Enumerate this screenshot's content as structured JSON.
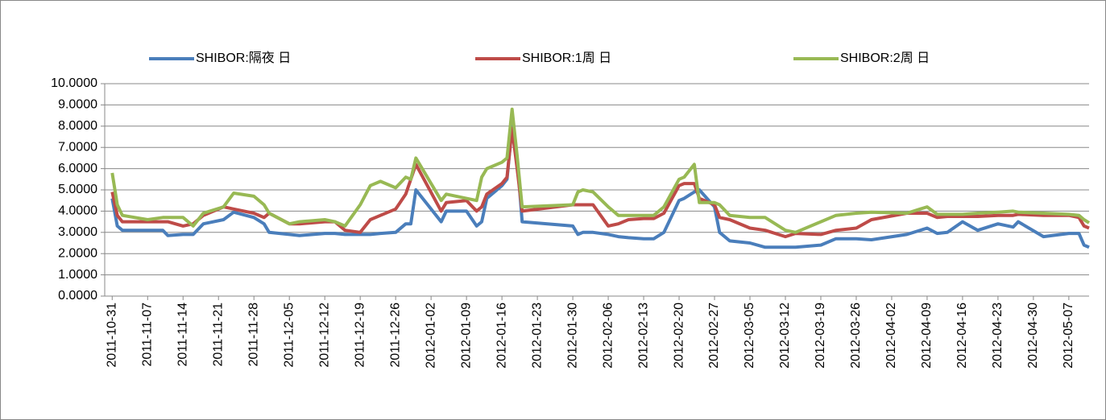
{
  "chart_data": {
    "type": "line",
    "x": [
      "2011-10-31",
      "2011-11-01",
      "2011-11-02",
      "2011-11-07",
      "2011-11-10",
      "2011-11-11",
      "2011-11-14",
      "2011-11-16",
      "2011-11-18",
      "2011-11-22",
      "2011-11-24",
      "2011-11-28",
      "2011-11-30",
      "2011-12-01",
      "2011-12-05",
      "2011-12-07",
      "2011-12-12",
      "2011-12-14",
      "2011-12-16",
      "2011-12-19",
      "2011-12-21",
      "2011-12-23",
      "2011-12-26",
      "2011-12-28",
      "2011-12-29",
      "2011-12-30",
      "2012-01-04",
      "2012-01-05",
      "2012-01-09",
      "2012-01-11",
      "2012-01-12",
      "2012-01-13",
      "2012-01-16",
      "2012-01-17",
      "2012-01-18",
      "2012-01-19",
      "2012-01-20",
      "2012-01-30",
      "2012-01-31",
      "2012-02-01",
      "2012-02-03",
      "2012-02-06",
      "2012-02-08",
      "2012-02-10",
      "2012-02-13",
      "2012-02-15",
      "2012-02-17",
      "2012-02-20",
      "2012-02-21",
      "2012-02-23",
      "2012-02-24",
      "2012-02-27",
      "2012-02-28",
      "2012-03-01",
      "2012-03-05",
      "2012-03-08",
      "2012-03-12",
      "2012-03-14",
      "2012-03-19",
      "2012-03-22",
      "2012-03-26",
      "2012-03-29",
      "2012-04-05",
      "2012-04-09",
      "2012-04-11",
      "2012-04-13",
      "2012-04-16",
      "2012-04-19",
      "2012-04-23",
      "2012-04-26",
      "2012-04-27",
      "2012-05-02",
      "2012-05-07",
      "2012-05-09",
      "2012-05-10",
      "2012-05-11"
    ],
    "series": [
      {
        "name": "SHIBOR:隔夜 日",
        "color": "#4a7ebb",
        "values": [
          4.6,
          3.3,
          3.1,
          3.1,
          3.1,
          2.85,
          2.9,
          2.9,
          3.4,
          3.6,
          3.95,
          3.7,
          3.4,
          3.0,
          2.9,
          2.85,
          2.95,
          2.95,
          2.9,
          2.9,
          2.9,
          2.95,
          3.0,
          3.4,
          3.4,
          5.0,
          3.5,
          4.0,
          4.0,
          3.3,
          3.5,
          4.6,
          5.2,
          5.5,
          8.0,
          6.5,
          3.5,
          3.3,
          2.9,
          3.0,
          3.0,
          2.9,
          2.8,
          2.75,
          2.7,
          2.7,
          3.0,
          4.5,
          4.6,
          4.9,
          5.0,
          4.2,
          3.0,
          2.6,
          2.5,
          2.3,
          2.3,
          2.3,
          2.4,
          2.7,
          2.7,
          2.65,
          2.9,
          3.2,
          2.95,
          3.0,
          3.5,
          3.1,
          3.4,
          3.25,
          3.5,
          2.8,
          2.95,
          2.95,
          2.4,
          2.3
        ]
      },
      {
        "name": "SHIBOR:1周 日",
        "color": "#be4b48",
        "values": [
          4.9,
          3.8,
          3.5,
          3.5,
          3.5,
          3.5,
          3.3,
          3.4,
          3.8,
          4.2,
          4.1,
          3.9,
          3.7,
          3.9,
          3.4,
          3.4,
          3.5,
          3.5,
          3.1,
          3.0,
          3.6,
          3.8,
          4.1,
          4.8,
          5.5,
          6.2,
          4.0,
          4.4,
          4.5,
          4.0,
          4.2,
          4.8,
          5.3,
          5.6,
          7.9,
          6.0,
          4.0,
          4.3,
          4.3,
          4.3,
          4.3,
          3.3,
          3.4,
          3.6,
          3.65,
          3.65,
          3.9,
          5.2,
          5.3,
          5.3,
          4.6,
          4.3,
          3.7,
          3.6,
          3.2,
          3.1,
          2.8,
          2.95,
          2.9,
          3.1,
          3.2,
          3.6,
          3.9,
          3.9,
          3.7,
          3.75,
          3.75,
          3.75,
          3.8,
          3.8,
          3.85,
          3.8,
          3.8,
          3.7,
          3.3,
          3.2
        ]
      },
      {
        "name": "SHIBOR:2周 日",
        "color": "#98b954",
        "values": [
          5.8,
          4.3,
          3.8,
          3.6,
          3.7,
          3.7,
          3.7,
          3.3,
          3.9,
          4.2,
          4.85,
          4.7,
          4.3,
          3.9,
          3.4,
          3.5,
          3.6,
          3.5,
          3.3,
          4.3,
          5.2,
          5.4,
          5.1,
          5.6,
          5.5,
          6.5,
          4.5,
          4.8,
          4.6,
          4.5,
          5.6,
          6.0,
          6.3,
          6.5,
          8.8,
          6.6,
          4.2,
          4.3,
          4.9,
          5.0,
          4.9,
          4.2,
          3.8,
          3.8,
          3.8,
          3.8,
          4.2,
          5.5,
          5.6,
          6.2,
          4.4,
          4.4,
          4.3,
          3.8,
          3.7,
          3.7,
          3.1,
          3.0,
          3.5,
          3.8,
          3.9,
          3.95,
          3.9,
          4.2,
          3.85,
          3.85,
          3.85,
          3.9,
          3.95,
          4.0,
          3.95,
          3.9,
          3.85,
          3.8,
          3.6,
          3.45
        ]
      }
    ],
    "xlim": [
      "2011-10-30",
      "2012-05-11"
    ],
    "xticks": [
      "2011-10-31",
      "2011-11-07",
      "2011-11-14",
      "2011-11-21",
      "2011-11-28",
      "2011-12-05",
      "2011-12-12",
      "2011-12-19",
      "2011-12-26",
      "2012-01-02",
      "2012-01-09",
      "2012-01-16",
      "2012-01-23",
      "2012-01-30",
      "2012-02-06",
      "2012-02-13",
      "2012-02-20",
      "2012-02-27",
      "2012-03-05",
      "2012-03-12",
      "2012-03-19",
      "2012-03-26",
      "2012-04-02",
      "2012-04-09",
      "2012-04-16",
      "2012-04-23",
      "2012-04-30",
      "2012-05-07"
    ],
    "ylim": [
      0,
      10
    ],
    "yticks": [
      {
        "value": 0,
        "label": "0.0000"
      },
      {
        "value": 1,
        "label": "1.0000"
      },
      {
        "value": 2,
        "label": "2.0000"
      },
      {
        "value": 3,
        "label": "3.0000"
      },
      {
        "value": 4,
        "label": "4.0000"
      },
      {
        "value": 5,
        "label": "5.0000"
      },
      {
        "value": 6,
        "label": "6.0000"
      },
      {
        "value": 7,
        "label": "7.0000"
      },
      {
        "value": 8,
        "label": "8.0000"
      },
      {
        "value": 9,
        "label": "9.0000"
      },
      {
        "value": 10,
        "label": "10.0000"
      }
    ],
    "grid": true,
    "legend": "top"
  }
}
